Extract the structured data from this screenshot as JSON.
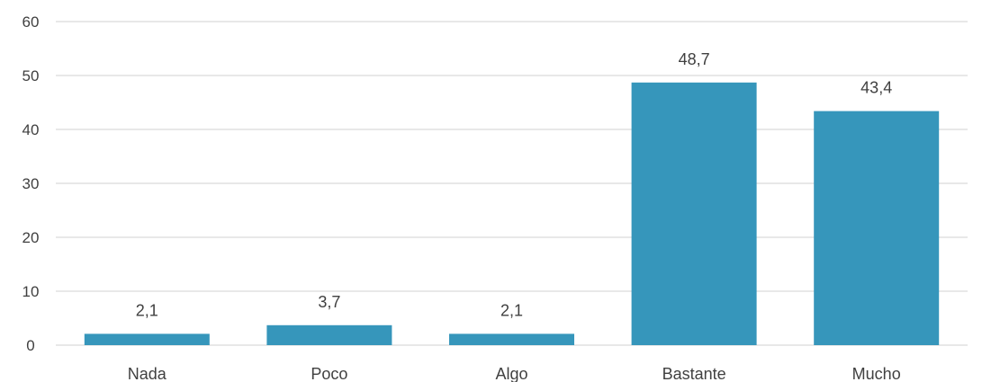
{
  "chart_data": {
    "type": "bar",
    "categories": [
      "Nada",
      "Poco",
      "Algo",
      "Bastante",
      "Mucho"
    ],
    "values": [
      2.1,
      3.7,
      2.1,
      48.7,
      43.4
    ],
    "data_labels": [
      "2,1",
      "3,7",
      "2,1",
      "48,7",
      "43,4"
    ],
    "ylim": [
      0,
      60
    ],
    "yticks": [
      0,
      10,
      20,
      30,
      40,
      50,
      60
    ],
    "ytick_labels": [
      "0",
      "10",
      "20",
      "30",
      "40",
      "50",
      "60"
    ],
    "title": "",
    "xlabel": "",
    "ylabel": "",
    "grid": true,
    "legend": "none",
    "bar_color": "#3696bb"
  }
}
